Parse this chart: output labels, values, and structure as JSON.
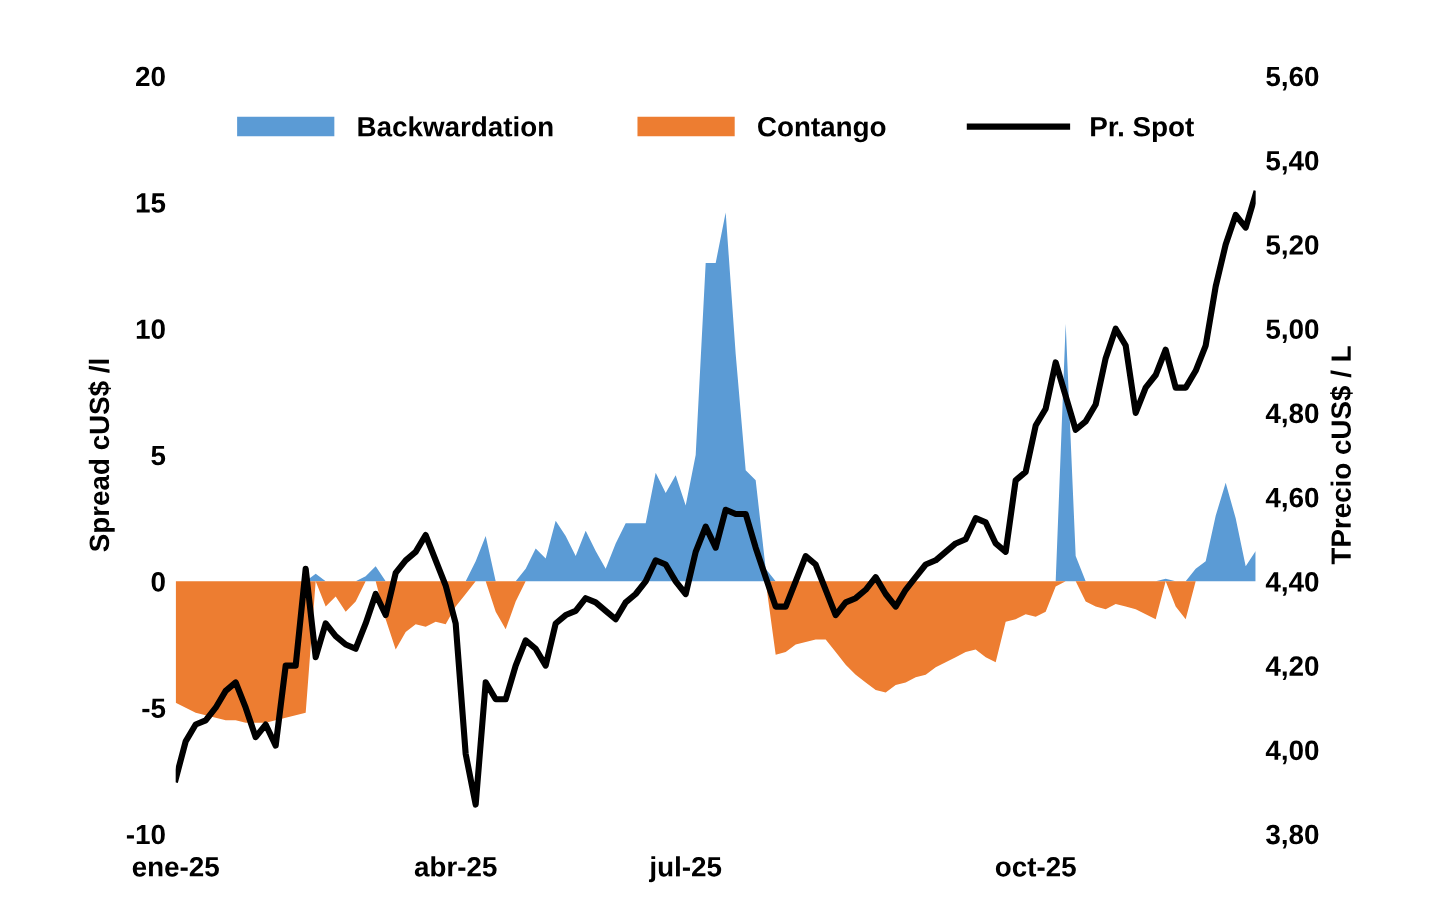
{
  "chart_data": {
    "type": "area",
    "ylabel": "Spread cUS$ /l",
    "y2label": "TPrecio cUS$ / L",
    "categories": [
      "ene-25",
      null,
      null,
      null,
      null,
      null,
      null,
      null,
      null,
      null,
      null,
      null,
      null,
      null,
      null,
      null,
      null,
      null,
      null,
      null,
      null,
      null,
      null,
      null,
      null,
      null,
      null,
      null,
      "abr-25",
      null,
      null,
      null,
      null,
      null,
      null,
      null,
      null,
      null,
      null,
      null,
      null,
      null,
      null,
      null,
      null,
      null,
      null,
      null,
      null,
      null,
      null,
      "jul-25",
      null,
      null,
      null,
      null,
      null,
      null,
      null,
      null,
      null,
      null,
      null,
      null,
      null,
      null,
      null,
      null,
      null,
      null,
      null,
      null,
      null,
      null,
      null,
      null,
      null,
      null,
      null,
      null,
      null,
      null,
      null,
      null,
      null,
      null,
      "oct-25",
      null,
      null,
      null,
      null,
      null,
      null,
      null,
      null,
      null,
      null,
      null,
      null,
      null,
      null,
      null,
      null,
      null,
      null,
      null,
      null,
      null,
      null
    ],
    "series": [
      {
        "name": "Backwardation",
        "color": "#5b9bd5",
        "values": [
          0,
          0,
          0,
          0,
          0,
          0,
          0,
          0,
          0,
          0,
          0,
          0,
          0,
          0,
          0.3,
          0,
          0,
          0,
          0,
          0.2,
          0.6,
          0,
          0,
          0,
          0,
          0,
          0,
          0,
          0,
          0,
          0.8,
          1.8,
          0,
          0,
          0,
          0.5,
          1.3,
          0.9,
          2.4,
          1.8,
          1.0,
          2.0,
          1.2,
          0.5,
          1.5,
          2.3,
          2.3,
          2.3,
          4.3,
          3.5,
          4.2,
          3.0,
          5.0,
          12.6,
          12.6,
          14.6,
          9.0,
          4.4,
          4.0,
          0.5,
          0,
          0,
          0,
          0,
          0,
          0,
          0,
          0,
          0,
          0,
          0,
          0,
          0,
          0,
          0,
          0,
          0,
          0,
          0,
          0,
          0,
          0,
          0,
          0,
          0,
          0,
          0,
          0,
          0,
          10.2,
          1.0,
          0,
          0,
          0,
          0,
          0,
          0,
          0,
          0,
          0.1,
          0,
          0,
          0.5,
          0.8,
          2.6,
          3.9,
          2.5,
          0.6,
          1.2
        ]
      },
      {
        "name": "Contango",
        "color": "#ed7d31",
        "values": [
          -4.8,
          -5.0,
          -5.2,
          -5.3,
          -5.4,
          -5.5,
          -5.5,
          -5.6,
          -5.6,
          -5.6,
          -5.5,
          -5.4,
          -5.3,
          -5.2,
          0,
          -1.0,
          -0.6,
          -1.2,
          -0.8,
          0,
          0,
          -1.5,
          -2.7,
          -2.0,
          -1.7,
          -1.8,
          -1.6,
          -1.7,
          -1.0,
          -0.5,
          0,
          0,
          -1.2,
          -1.9,
          -0.8,
          0,
          0,
          0,
          0,
          0,
          0,
          0,
          0,
          0,
          0,
          0,
          0,
          0,
          0,
          0,
          0,
          0,
          0,
          0,
          0,
          0,
          0,
          0,
          0,
          0,
          -2.9,
          -2.8,
          -2.5,
          -2.4,
          -2.3,
          -2.3,
          -2.8,
          -3.3,
          -3.7,
          -4.0,
          -4.3,
          -4.4,
          -4.1,
          -4.0,
          -3.8,
          -3.7,
          -3.4,
          -3.2,
          -3.0,
          -2.8,
          -2.7,
          -3.0,
          -3.2,
          -1.6,
          -1.5,
          -1.3,
          -1.4,
          -1.2,
          -0.2,
          0,
          0,
          -0.8,
          -1.0,
          -1.1,
          -0.9,
          -1.0,
          -1.1,
          -1.3,
          -1.5,
          0,
          -1.0,
          -1.5,
          0,
          0,
          0,
          0,
          0,
          0,
          0
        ]
      },
      {
        "name": "Pr. Spot",
        "type": "line",
        "axis": "y2",
        "color": "#000000",
        "values": [
          3.93,
          4.02,
          4.06,
          4.07,
          4.1,
          4.14,
          4.16,
          4.1,
          4.03,
          4.06,
          4.01,
          4.2,
          4.2,
          4.43,
          4.22,
          4.3,
          4.27,
          4.25,
          4.24,
          4.3,
          4.37,
          4.32,
          4.42,
          4.45,
          4.47,
          4.51,
          4.45,
          4.39,
          4.3,
          3.99,
          3.87,
          4.16,
          4.12,
          4.12,
          4.2,
          4.26,
          4.24,
          4.2,
          4.3,
          4.32,
          4.33,
          4.36,
          4.35,
          4.33,
          4.31,
          4.35,
          4.37,
          4.4,
          4.45,
          4.44,
          4.4,
          4.37,
          4.47,
          4.53,
          4.48,
          4.57,
          4.56,
          4.56,
          4.48,
          4.41,
          4.34,
          4.34,
          4.4,
          4.46,
          4.44,
          4.38,
          4.32,
          4.35,
          4.36,
          4.38,
          4.41,
          4.37,
          4.34,
          4.38,
          4.41,
          4.44,
          4.45,
          4.47,
          4.49,
          4.5,
          4.55,
          4.54,
          4.49,
          4.47,
          4.64,
          4.66,
          4.77,
          4.81,
          4.92,
          4.84,
          4.76,
          4.78,
          4.82,
          4.93,
          5.0,
          4.96,
          4.8,
          4.86,
          4.89,
          4.95,
          4.86,
          4.86,
          4.9,
          4.96,
          5.1,
          5.2,
          5.27,
          5.24,
          5.32
        ]
      }
    ],
    "ylim": [
      -10,
      20
    ],
    "yticks": [
      -10,
      -5,
      0,
      5,
      10,
      15,
      20
    ],
    "y2lim": [
      3.8,
      5.6
    ],
    "y2ticks": [
      {
        "value": 3.8,
        "label": "3,80"
      },
      {
        "value": 4.0,
        "label": "4,00"
      },
      {
        "value": 4.2,
        "label": "4,20"
      },
      {
        "value": 4.4,
        "label": "4,40"
      },
      {
        "value": 4.6,
        "label": "4,60"
      },
      {
        "value": 4.8,
        "label": "4,80"
      },
      {
        "value": 5.0,
        "label": "5,00"
      },
      {
        "value": 5.2,
        "label": "5,20"
      },
      {
        "value": 5.4,
        "label": "5,40"
      },
      {
        "value": 5.6,
        "label": "5,60"
      }
    ],
    "grid": false,
    "legend": "top",
    "line_style": "solid",
    "marker": "none"
  }
}
